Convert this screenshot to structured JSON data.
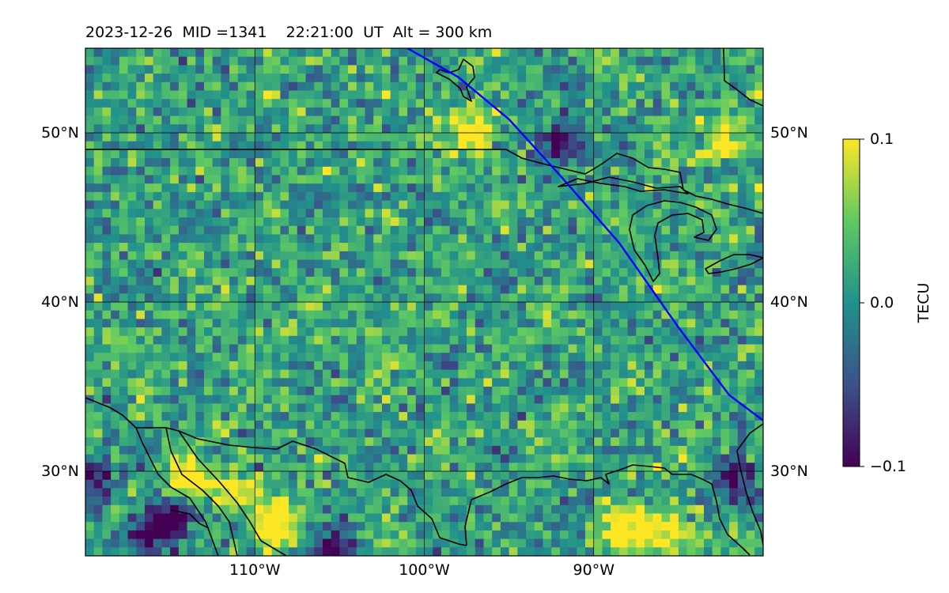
{
  "title": {
    "date": "2023-12-26",
    "mid": "MID =1341",
    "time": "22:21:00",
    "ut": "UT",
    "alt": "Alt = 300 km"
  },
  "map": {
    "type": "heatmap",
    "quantity": "TECU",
    "lon_range": [
      -120,
      -80
    ],
    "lat_range": [
      25,
      55
    ],
    "gridlines": "on",
    "lat_ticks": [
      {
        "value": 30,
        "label": "30°N"
      },
      {
        "value": 40,
        "label": "40°N"
      },
      {
        "value": 50,
        "label": "50°N"
      }
    ],
    "lon_ticks": [
      {
        "value": -110,
        "label": "110°W"
      },
      {
        "value": -100,
        "label": "100°W"
      },
      {
        "value": -90,
        "label": "90°W"
      }
    ],
    "track_color": "#0000ff",
    "track": [
      [
        -101,
        55
      ],
      [
        -98,
        53.3
      ],
      [
        -95,
        50.8
      ],
      [
        -92,
        47.5
      ],
      [
        -88.5,
        43.5
      ],
      [
        -85,
        38.5
      ],
      [
        -82,
        34.5
      ],
      [
        -80,
        33
      ]
    ],
    "highlights": [
      {
        "lon": -114.5,
        "lat": 29.6,
        "value": 0.1
      },
      {
        "lon": -111.5,
        "lat": 29.2,
        "value": 0.09
      },
      {
        "lon": -109,
        "lat": 27.0,
        "value": 0.1
      },
      {
        "lon": -88.5,
        "lat": 27.0,
        "value": 0.1
      },
      {
        "lon": -86,
        "lat": 26.7,
        "value": 0.1
      },
      {
        "lon": -97.3,
        "lat": 50.4,
        "value": 0.1
      },
      {
        "lon": -82.5,
        "lat": 49.8,
        "value": 0.08
      }
    ],
    "lows": [
      {
        "lon": -116.5,
        "lat": 26.6,
        "value": -0.1
      },
      {
        "lon": -115,
        "lat": 27.8,
        "value": -0.09
      },
      {
        "lon": -105.5,
        "lat": 25.5,
        "value": -0.1
      },
      {
        "lon": -92.2,
        "lat": 49.6,
        "value": -0.1
      },
      {
        "lon": -119.7,
        "lat": 29.7,
        "value": -0.09
      },
      {
        "lon": -82,
        "lat": 29.6,
        "value": -0.08
      }
    ]
  },
  "colorbar": {
    "label": "TECU",
    "min": -0.1,
    "max": 0.1,
    "ticks": [
      {
        "value": 0.1,
        "label": "0.1"
      },
      {
        "value": 0.0,
        "label": "0.0"
      },
      {
        "value": -0.1,
        "label": "−0.1"
      }
    ],
    "colormap": [
      "#440154",
      "#3b528b",
      "#21918c",
      "#5ec962",
      "#fde725"
    ]
  }
}
